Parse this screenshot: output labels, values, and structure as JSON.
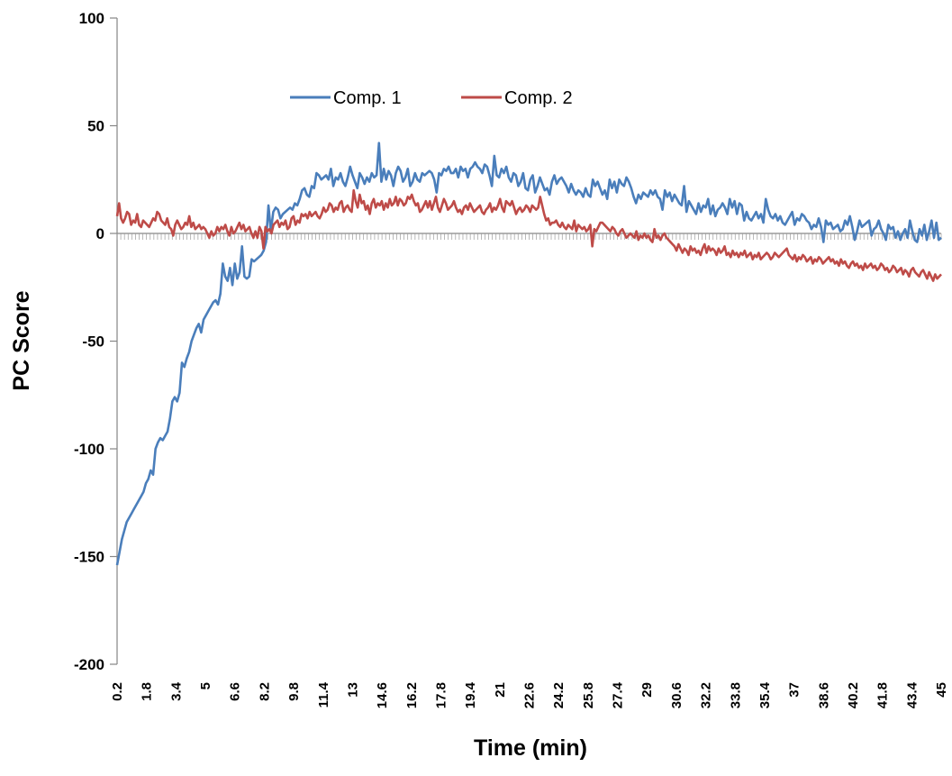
{
  "chart_data": {
    "type": "line",
    "title": "",
    "xlabel": "Time (min)",
    "ylabel": "PC Score",
    "ylim": [
      -200,
      100
    ],
    "yticks": [
      100,
      50,
      0,
      -50,
      -100,
      -150,
      -200
    ],
    "xlim": [
      0.2,
      45
    ],
    "xtick_labels": [
      "0.2",
      "1.8",
      "3.4",
      "5",
      "6.6",
      "8.2",
      "9.8",
      "11.4",
      "13",
      "14.6",
      "16.2",
      "17.8",
      "19.4",
      "21",
      "22.6",
      "24.2",
      "25.8",
      "27.4",
      "29",
      "30.6",
      "32.2",
      "33.8",
      "35.4",
      "37",
      "38.6",
      "40.2",
      "41.8",
      "43.4",
      "45"
    ],
    "x_step": 0.2,
    "grid": false,
    "legend_position": "top-center",
    "series": [
      {
        "name": "Comp. 1",
        "color": "#4a7ebb",
        "values": [
          -154,
          -148,
          -142,
          -138,
          -134,
          -132,
          -130,
          -128,
          -126,
          -124,
          -122,
          -120,
          -116,
          -114,
          -110,
          -112,
          -100,
          -97,
          -95,
          -96,
          -94,
          -92,
          -86,
          -78,
          -76,
          -78,
          -74,
          -60,
          -62,
          -58,
          -55,
          -50,
          -47,
          -44,
          -42,
          -46,
          -40,
          -38,
          -36,
          -34,
          -32,
          -31,
          -33,
          -28,
          -14,
          -20,
          -22,
          -16,
          -24,
          -14,
          -21,
          -18,
          -6,
          -20,
          -21,
          -20,
          -12,
          -13,
          -12,
          -11,
          -10,
          -8,
          -4,
          13,
          1,
          10,
          12,
          11,
          7,
          9,
          10,
          11,
          12,
          11,
          14,
          13,
          16,
          20,
          21,
          18,
          17,
          22,
          21,
          28,
          27,
          25,
          26,
          27,
          25,
          30,
          22,
          26,
          25,
          28,
          24,
          22,
          26,
          31,
          27,
          24,
          21,
          28,
          26,
          23,
          26,
          24,
          28,
          26,
          27,
          42,
          24,
          30,
          25,
          29,
          27,
          22,
          28,
          31,
          29,
          24,
          26,
          30,
          22,
          24,
          28,
          25,
          24,
          28,
          27,
          28,
          29,
          28,
          25,
          19,
          28,
          27,
          30,
          29,
          31,
          28,
          28,
          30,
          26,
          31,
          29,
          30,
          26,
          30,
          31,
          33,
          31,
          30,
          28,
          32,
          31,
          27,
          22,
          36,
          27,
          26,
          30,
          28,
          31,
          26,
          24,
          28,
          27,
          22,
          24,
          28,
          21,
          20,
          25,
          27,
          19,
          22,
          26,
          23,
          20,
          21,
          18,
          24,
          27,
          23,
          25,
          26,
          24,
          22,
          19,
          23,
          20,
          18,
          20,
          19,
          17,
          21,
          18,
          17,
          25,
          22,
          24,
          21,
          18,
          20,
          16,
          25,
          21,
          24,
          19,
          25,
          23,
          22,
          26,
          24,
          21,
          17,
          14,
          18,
          16,
          19,
          18,
          17,
          20,
          18,
          20,
          17,
          16,
          11,
          20,
          17,
          19,
          15,
          18,
          16,
          14,
          13,
          22,
          10,
          15,
          13,
          11,
          9,
          14,
          10,
          13,
          12,
          16,
          9,
          13,
          8,
          11,
          12,
          14,
          12,
          9,
          16,
          12,
          15,
          9,
          14,
          13,
          6,
          10,
          7,
          6,
          8,
          10,
          7,
          9,
          5,
          16,
          11,
          8,
          7,
          9,
          6,
          8,
          5,
          4,
          6,
          8,
          10,
          4,
          7,
          6,
          9,
          8,
          6,
          5,
          2,
          4,
          3,
          7,
          3,
          -4,
          6,
          4,
          5,
          2,
          3,
          4,
          1,
          2,
          6,
          4,
          8,
          3,
          -3,
          1,
          6,
          3,
          4,
          5,
          6,
          -1,
          2,
          3,
          6,
          2,
          0,
          -3,
          4,
          2,
          3,
          -2,
          1,
          -3,
          0,
          2,
          -2,
          6,
          1,
          -3,
          -4,
          2,
          -1,
          4,
          -3,
          1,
          6,
          -2,
          5,
          -3,
          -2
        ]
      },
      {
        "name": "Comp. 2",
        "color": "#be4b48",
        "values": [
          8,
          14,
          7,
          5,
          7,
          10,
          9,
          4,
          6,
          5,
          9,
          4,
          3,
          6,
          5,
          4,
          3,
          5,
          7,
          6,
          10,
          9,
          6,
          5,
          4,
          7,
          3,
          2,
          -1,
          4,
          6,
          4,
          2,
          3,
          5,
          4,
          8,
          3,
          5,
          2,
          3,
          4,
          2,
          3,
          2,
          0,
          -2,
          1,
          -1,
          0,
          3,
          1,
          3,
          2,
          4,
          1,
          -1,
          3,
          0,
          1,
          3,
          5,
          2,
          4,
          1,
          2,
          3,
          0,
          -2,
          1,
          -2,
          3,
          1,
          -7,
          3,
          1,
          2,
          0,
          4,
          5,
          6,
          3,
          5,
          4,
          6,
          2,
          3,
          7,
          8,
          4,
          6,
          5,
          9,
          8,
          9,
          7,
          10,
          8,
          9,
          10,
          8,
          7,
          9,
          12,
          10,
          11,
          14,
          13,
          10,
          12,
          11,
          14,
          15,
          10,
          12,
          13,
          11,
          10,
          20,
          15,
          12,
          18,
          14,
          15,
          11,
          13,
          9,
          14,
          16,
          12,
          14,
          13,
          15,
          11,
          14,
          12,
          16,
          13,
          14,
          17,
          13,
          16,
          15,
          13,
          14,
          17,
          16,
          18,
          15,
          13,
          14,
          10,
          11,
          13,
          15,
          12,
          15,
          11,
          14,
          17,
          12,
          10,
          13,
          16,
          14,
          11,
          12,
          13,
          15,
          12,
          10,
          11,
          9,
          12,
          13,
          11,
          14,
          12,
          10,
          11,
          12,
          13,
          10,
          9,
          11,
          12,
          14,
          10,
          12,
          11,
          13,
          16,
          12,
          10,
          15,
          14,
          13,
          15,
          12,
          9,
          11,
          12,
          10,
          11,
          13,
          12,
          10,
          13,
          12,
          11,
          12,
          17,
          13,
          9,
          6,
          7,
          4,
          5,
          5,
          6,
          4,
          3,
          5,
          3,
          2,
          4,
          3,
          2,
          6,
          1,
          4,
          3,
          2,
          3,
          1,
          2,
          4,
          -6,
          2,
          1,
          3,
          5,
          5,
          4,
          3,
          2,
          1,
          3,
          2,
          0,
          -1,
          1,
          2,
          0,
          -2,
          -1,
          0,
          -1,
          -2,
          1,
          -3,
          -1,
          -2,
          0,
          -2,
          -1,
          -3,
          -4,
          2,
          -2,
          -1,
          -3,
          -1,
          0,
          -2,
          -3,
          -4,
          -5,
          -6,
          -8,
          -5,
          -7,
          -9,
          -7,
          -8,
          -10,
          -6,
          -8,
          -7,
          -9,
          -8,
          -10,
          -7,
          -5,
          -9,
          -6,
          -8,
          -7,
          -8,
          -10,
          -7,
          -9,
          -8,
          -6,
          -10,
          -9,
          -11,
          -8,
          -10,
          -9,
          -11,
          -9,
          -10,
          -8,
          -11,
          -10,
          -9,
          -12,
          -10,
          -11,
          -9,
          -12,
          -11,
          -10,
          -9,
          -10,
          -12,
          -11,
          -9,
          -10,
          -11,
          -10,
          -9,
          -8,
          -7,
          -10,
          -11,
          -12,
          -10,
          -13,
          -11,
          -12,
          -10,
          -11,
          -13,
          -12,
          -11,
          -14,
          -12,
          -13,
          -11,
          -12,
          -14,
          -13,
          -12,
          -11,
          -13,
          -12,
          -14,
          -13,
          -15,
          -12,
          -14,
          -13,
          -15,
          -16,
          -14,
          -13,
          -15,
          -14,
          -16,
          -15,
          -17,
          -14,
          -16,
          -15,
          -14,
          -16,
          -15,
          -17,
          -16,
          -14,
          -15,
          -17,
          -16,
          -18,
          -17,
          -15,
          -16,
          -18,
          -17,
          -16,
          -19,
          -17,
          -18,
          -20,
          -17,
          -16,
          -18,
          -19,
          -20,
          -18,
          -17,
          -19,
          -21,
          -18,
          -20,
          -22,
          -19,
          -21,
          -20,
          -19
        ]
      }
    ]
  }
}
